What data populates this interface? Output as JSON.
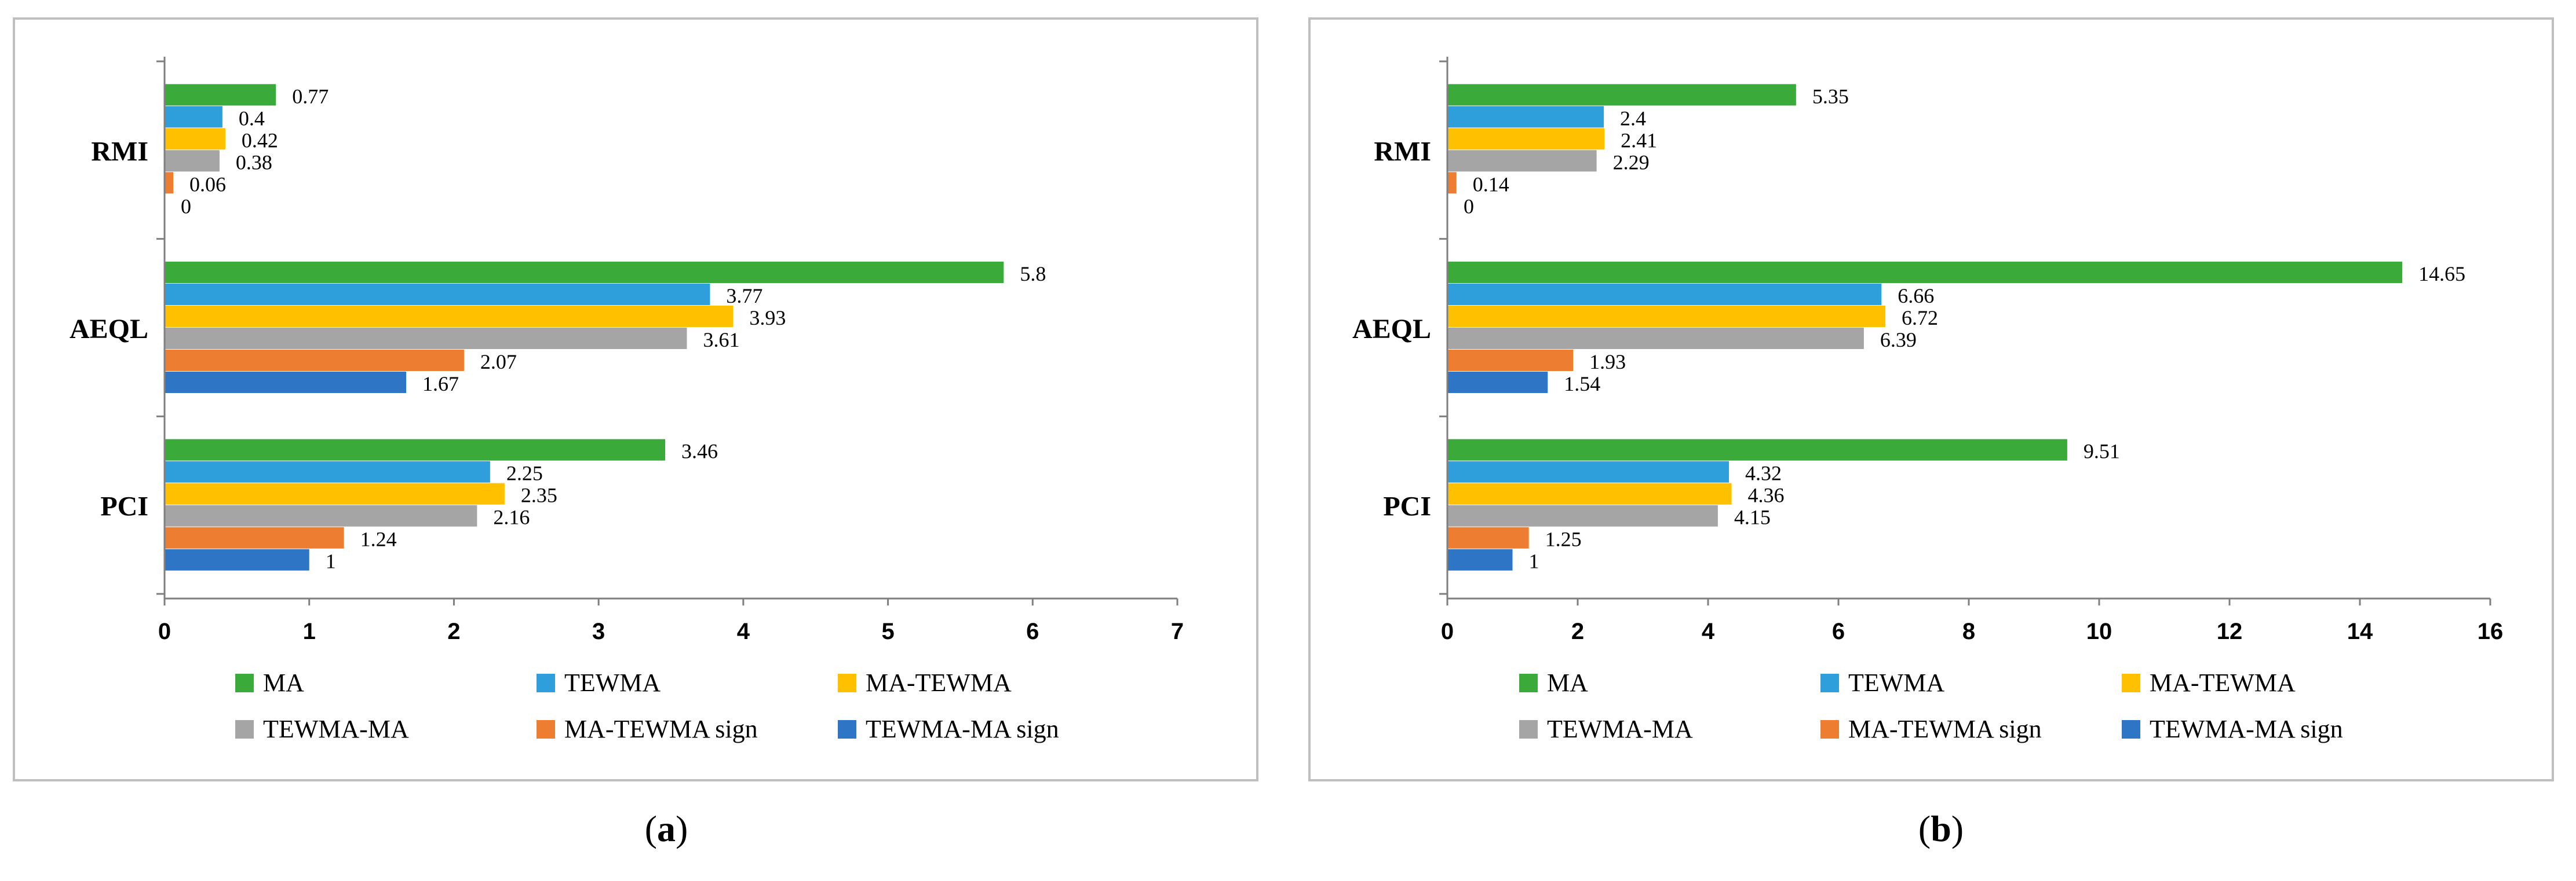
{
  "chart_data": [
    {
      "type": "bar",
      "orientation": "horizontal",
      "panel_label": "a",
      "categories": [
        "RMI",
        "AEQL",
        "PCI"
      ],
      "series": [
        {
          "name": "MA",
          "color": "#3aab3a",
          "values": [
            0.77,
            5.8,
            3.46
          ]
        },
        {
          "name": "TEWMA",
          "color": "#2f9fdc",
          "values": [
            0.4,
            3.77,
            2.25
          ]
        },
        {
          "name": "MA-TEWMA",
          "color": "#ffc000",
          "values": [
            0.42,
            3.93,
            2.35
          ]
        },
        {
          "name": "TEWMA-MA",
          "color": "#a5a5a5",
          "values": [
            0.38,
            3.61,
            2.16
          ]
        },
        {
          "name": "MA-TEWMA sign",
          "color": "#ed7d31",
          "values": [
            0.06,
            2.07,
            1.24
          ]
        },
        {
          "name": "TEWMA-MA sign",
          "color": "#2e75c6",
          "values": [
            0,
            1.67,
            1
          ]
        }
      ],
      "value_labels": [
        [
          "0.77",
          "5.8",
          "3.46"
        ],
        [
          "0.4",
          "3.77",
          "2.25"
        ],
        [
          "0.42",
          "3.93",
          "2.35"
        ],
        [
          "0.38",
          "3.61",
          "2.16"
        ],
        [
          "0.06",
          "2.07",
          "1.24"
        ],
        [
          "0",
          "1.67",
          "1"
        ]
      ],
      "xlim": [
        0,
        7
      ],
      "xticks": [
        "0",
        "1",
        "2",
        "3",
        "4",
        "5",
        "6",
        "7"
      ],
      "legend": "bottom",
      "gridlines": false
    },
    {
      "type": "bar",
      "orientation": "horizontal",
      "panel_label": "b",
      "categories": [
        "RMI",
        "AEQL",
        "PCI"
      ],
      "series": [
        {
          "name": "MA",
          "color": "#3aab3a",
          "values": [
            5.35,
            14.65,
            9.51
          ]
        },
        {
          "name": "TEWMA",
          "color": "#2f9fdc",
          "values": [
            2.4,
            6.66,
            4.32
          ]
        },
        {
          "name": "MA-TEWMA",
          "color": "#ffc000",
          "values": [
            2.41,
            6.72,
            4.36
          ]
        },
        {
          "name": "TEWMA-MA",
          "color": "#a5a5a5",
          "values": [
            2.29,
            6.39,
            4.15
          ]
        },
        {
          "name": "MA-TEWMA sign",
          "color": "#ed7d31",
          "values": [
            0.14,
            1.93,
            1.25
          ]
        },
        {
          "name": "TEWMA-MA sign",
          "color": "#2e75c6",
          "values": [
            0,
            1.54,
            1
          ]
        }
      ],
      "value_labels": [
        [
          "5.35",
          "14.65",
          "9.51"
        ],
        [
          "2.4",
          "6.66",
          "4.32"
        ],
        [
          "2.41",
          "6.72",
          "4.36"
        ],
        [
          "2.29",
          "6.39",
          "4.15"
        ],
        [
          "0.14",
          "1.93",
          "1.25"
        ],
        [
          "0",
          "1.54",
          "1"
        ]
      ],
      "xlim": [
        0,
        16
      ],
      "xticks": [
        "0",
        "2",
        "4",
        "6",
        "8",
        "10",
        "12",
        "14",
        "16"
      ],
      "legend": "bottom",
      "gridlines": false
    }
  ]
}
